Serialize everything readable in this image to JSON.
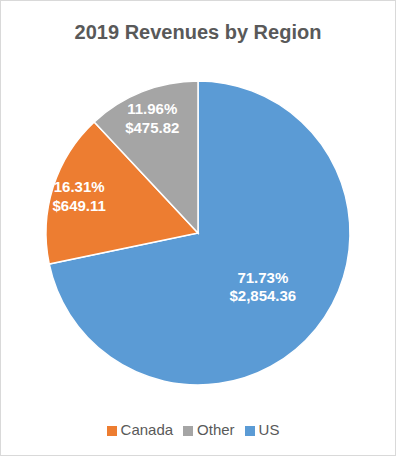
{
  "chart_data": {
    "type": "pie",
    "title": "2019 Revenues by Region",
    "categories": [
      "US",
      "Canada",
      "Other"
    ],
    "values": [
      2854.36,
      649.11,
      475.82
    ],
    "value_labels": [
      "$2,854.36",
      "$649.11",
      "$475.82"
    ],
    "shares": [
      71.73,
      16.31,
      11.96
    ],
    "share_labels": [
      "71.73%",
      "16.31%",
      "11.96%"
    ],
    "colors": [
      "#5b9bd5",
      "#ed7d31",
      "#a5a5a5"
    ],
    "data_labels": true,
    "legend": "bottom"
  }
}
